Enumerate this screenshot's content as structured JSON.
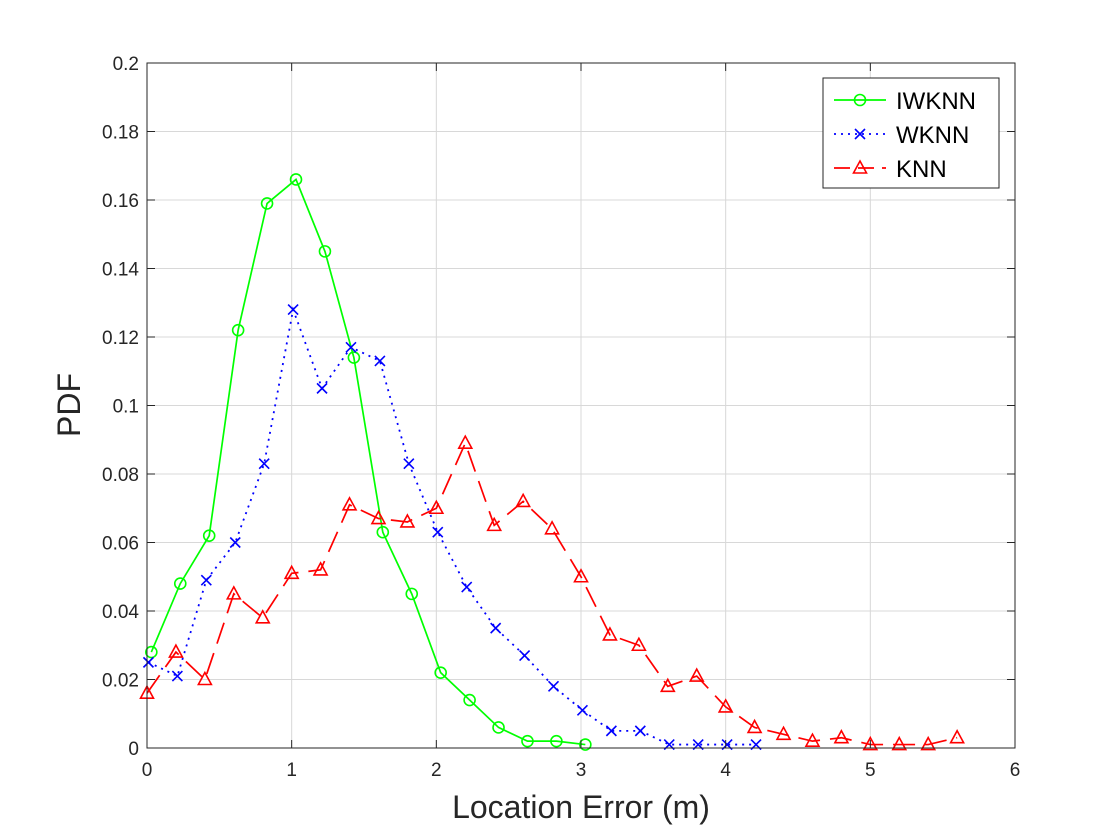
{
  "chart_data": {
    "type": "line",
    "title": "",
    "xlabel": "Location Error (m)",
    "ylabel": "PDF",
    "xlim": [
      0,
      6
    ],
    "ylim": [
      0,
      0.2
    ],
    "xticks": [
      0,
      1,
      2,
      3,
      4,
      5,
      6
    ],
    "xtick_labels": [
      "0",
      "1",
      "2",
      "3",
      "4",
      "5",
      "6"
    ],
    "yticks": [
      0,
      0.02,
      0.04,
      0.06,
      0.08,
      0.1,
      0.12,
      0.14,
      0.16,
      0.18,
      0.2
    ],
    "ytick_labels": [
      "0",
      "0.02",
      "0.04",
      "0.06",
      "0.08",
      "0.1",
      "0.12",
      "0.14",
      "0.16",
      "0.18",
      "0.2"
    ],
    "grid": true,
    "legend_position": "top-right",
    "series": [
      {
        "name": "IWKNN",
        "color": "#00ff00",
        "line_style": "solid",
        "marker": "circle",
        "x": [
          0.03,
          0.23,
          0.43,
          0.63,
          0.83,
          1.03,
          1.23,
          1.43,
          1.63,
          1.83,
          2.03,
          2.23,
          2.43,
          2.63,
          2.83,
          3.03
        ],
        "y": [
          0.028,
          0.048,
          0.062,
          0.122,
          0.159,
          0.166,
          0.145,
          0.114,
          0.063,
          0.045,
          0.022,
          0.014,
          0.006,
          0.002,
          0.002,
          0.001
        ]
      },
      {
        "name": "WKNN",
        "color": "#0000ff",
        "line_style": "dotted",
        "marker": "x",
        "x": [
          0.01,
          0.21,
          0.41,
          0.61,
          0.81,
          1.01,
          1.21,
          1.41,
          1.61,
          1.81,
          2.01,
          2.21,
          2.41,
          2.61,
          2.81,
          3.01,
          3.21,
          3.41,
          3.61,
          3.81,
          4.01,
          4.21
        ],
        "y": [
          0.025,
          0.021,
          0.049,
          0.06,
          0.083,
          0.128,
          0.105,
          0.117,
          0.113,
          0.083,
          0.063,
          0.047,
          0.035,
          0.027,
          0.018,
          0.011,
          0.005,
          0.005,
          0.001,
          0.001,
          0.001,
          0.001
        ]
      },
      {
        "name": "KNN",
        "color": "#ff0000",
        "line_style": "dashed",
        "marker": "triangle",
        "x": [
          0,
          0.2,
          0.4,
          0.6,
          0.8,
          1.0,
          1.2,
          1.4,
          1.6,
          1.8,
          2.0,
          2.2,
          2.4,
          2.6,
          2.8,
          3.0,
          3.2,
          3.4,
          3.6,
          3.8,
          4.0,
          4.2,
          4.4,
          4.6,
          4.8,
          5.0,
          5.2,
          5.4,
          5.6
        ],
        "y": [
          0.016,
          0.028,
          0.02,
          0.045,
          0.038,
          0.051,
          0.052,
          0.071,
          0.067,
          0.066,
          0.07,
          0.089,
          0.065,
          0.072,
          0.064,
          0.05,
          0.033,
          0.03,
          0.018,
          0.021,
          0.012,
          0.006,
          0.004,
          0.002,
          0.003,
          0.001,
          0.001,
          0.001,
          0.003
        ]
      }
    ]
  }
}
